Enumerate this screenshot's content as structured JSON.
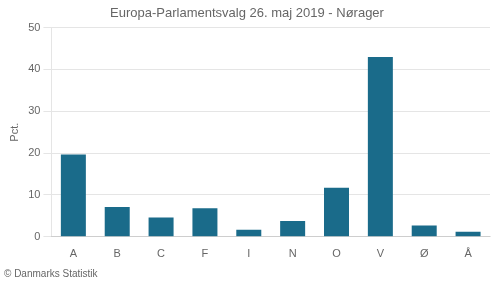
{
  "chart_data": {
    "type": "bar",
    "title": "Europa-Parlamentsvalg 26. maj 2019 - Nørager",
    "categories": [
      "A",
      "B",
      "C",
      "F",
      "I",
      "N",
      "O",
      "V",
      "Ø",
      "Å"
    ],
    "values": [
      19.7,
      7.1,
      4.6,
      6.8,
      1.7,
      3.8,
      11.7,
      43.0,
      2.7,
      1.2
    ],
    "color": "#1a6b8a",
    "ylabel": "Pct.",
    "ylim": [
      0,
      50
    ],
    "yticks": [
      0,
      10,
      20,
      30,
      40,
      50
    ],
    "grid": true,
    "footer": "© Danmarks Statistik"
  }
}
